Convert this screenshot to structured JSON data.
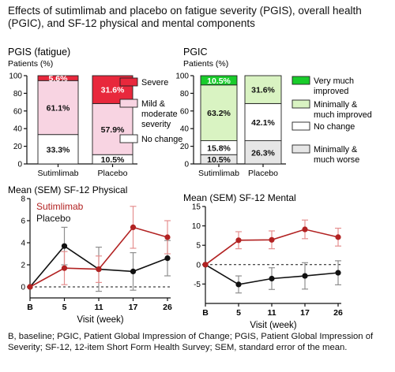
{
  "title": "Effects of sutimlimab and placebo on fatigue severity (PGIS), overall health (PGIC), and SF-12 physical and mental components",
  "footnote": "B, baseline; PGIC, Patient Global Impression of Change; PGIS, Patient Global Impression of Severity; SF-12, 12-item Short Form Health Survey; SEM, standard error of the mean.",
  "colors": {
    "sutimlimab": "#b22222",
    "placebo": "#111111",
    "severe": "#e8283c",
    "mild_moderate": "#f8d4e2",
    "no_change": "#ffffff",
    "very_much_improved": "#19cc2b",
    "minimally_much_improved": "#d9f3c2",
    "minimally_much_worse": "#e6e6e6"
  },
  "chart_data": [
    {
      "id": "pgis",
      "type": "bar",
      "stacked": true,
      "title": "PGIS (fatigue)",
      "ylabel": "Patients (%)",
      "categories": [
        "Sutimlimab",
        "Placebo"
      ],
      "ylim": [
        0,
        100
      ],
      "yticks": [
        0,
        20,
        40,
        60,
        80,
        100
      ],
      "series": [
        {
          "name": "No change",
          "values": [
            33.3,
            10.5
          ],
          "labels": [
            "33.3%",
            "10.5%"
          ],
          "color_key": "no_change"
        },
        {
          "name": "Mild & moderate severity",
          "values": [
            61.1,
            57.9
          ],
          "labels": [
            "61.1%",
            "57.9%"
          ],
          "color_key": "mild_moderate"
        },
        {
          "name": "Severe",
          "values": [
            5.6,
            31.6
          ],
          "labels": [
            "5.6%",
            "31.6%"
          ],
          "color_key": "severe"
        }
      ],
      "legend": [
        {
          "text": [
            "Severe"
          ],
          "color_key": "severe"
        },
        {
          "text": [
            "Mild &",
            "moderate",
            "severity"
          ],
          "color_key": "mild_moderate"
        },
        {
          "text": [
            "No change"
          ],
          "color_key": "no_change"
        }
      ],
      "legend_position": "right"
    },
    {
      "id": "pgic",
      "type": "bar",
      "stacked": true,
      "title": "PGIC",
      "ylabel": "Patients (%)",
      "categories": [
        "Sutimlimab",
        "Placebo"
      ],
      "ylim": [
        0,
        100
      ],
      "yticks": [
        0,
        20,
        40,
        60,
        80,
        100
      ],
      "series": [
        {
          "name": "Minimally & much worse",
          "values": [
            10.5,
            26.3
          ],
          "labels": [
            "10.5%",
            "26.3%"
          ],
          "color_key": "minimally_much_worse"
        },
        {
          "name": "No change",
          "values": [
            15.8,
            42.1
          ],
          "labels": [
            "15.8%",
            "42.1%"
          ],
          "color_key": "no_change"
        },
        {
          "name": "Minimally & much improved",
          "values": [
            63.2,
            31.6
          ],
          "labels": [
            "63.2%",
            "31.6%"
          ],
          "color_key": "minimally_much_improved"
        },
        {
          "name": "Very much improved",
          "values": [
            10.5,
            0
          ],
          "labels": [
            "10.5%",
            ""
          ],
          "color_key": "very_much_improved"
        }
      ],
      "legend": [
        {
          "text": [
            "Very much",
            "improved"
          ],
          "color_key": "very_much_improved"
        },
        {
          "text": [
            "Minimally &",
            "much improved"
          ],
          "color_key": "minimally_much_improved"
        },
        {
          "text": [
            "No change"
          ],
          "color_key": "no_change"
        },
        {
          "text": [
            "Minimally &",
            "much worse"
          ],
          "color_key": "minimally_much_worse"
        }
      ],
      "legend_position": "right"
    },
    {
      "id": "sf12_physical",
      "type": "line",
      "title": "Mean (SEM) SF-12 Physical",
      "xlabel": "Visit (week)",
      "x": [
        "B",
        "5",
        "11",
        "17",
        "26"
      ],
      "ylim": [
        -1,
        8
      ],
      "yticks": [
        0,
        2,
        4,
        6,
        8
      ],
      "reference_line": 0,
      "series": [
        {
          "name": "Sutimlimab",
          "values": [
            0,
            1.7,
            1.6,
            5.4,
            4.5
          ],
          "err": [
            0,
            1.5,
            1.2,
            1.9,
            1.5
          ],
          "color_key": "sutimlimab"
        },
        {
          "name": "Placebo",
          "values": [
            0,
            3.7,
            1.6,
            1.4,
            2.6
          ],
          "err": [
            0,
            1.7,
            2.0,
            1.7,
            1.6
          ],
          "color_key": "placebo"
        }
      ],
      "legend_position": "top-left"
    },
    {
      "id": "sf12_mental",
      "type": "line",
      "title": "Mean (SEM) SF-12 Mental",
      "xlabel": "Visit (week)",
      "x": [
        "B",
        "5",
        "11",
        "17",
        "26"
      ],
      "ylim": [
        -10,
        15
      ],
      "yticks": [
        -5,
        0,
        5,
        10,
        15
      ],
      "reference_line": 0,
      "series": [
        {
          "name": "Sutimlimab",
          "values": [
            0,
            6.3,
            6.4,
            9.1,
            7.1
          ],
          "err": [
            0,
            2.2,
            2.3,
            2.4,
            2.3
          ],
          "color_key": "sutimlimab"
        },
        {
          "name": "Placebo",
          "values": [
            0,
            -5.1,
            -3.6,
            -2.9,
            -2.1
          ],
          "err": [
            0,
            2.2,
            2.8,
            3.4,
            3.1
          ],
          "color_key": "placebo"
        }
      ]
    }
  ]
}
